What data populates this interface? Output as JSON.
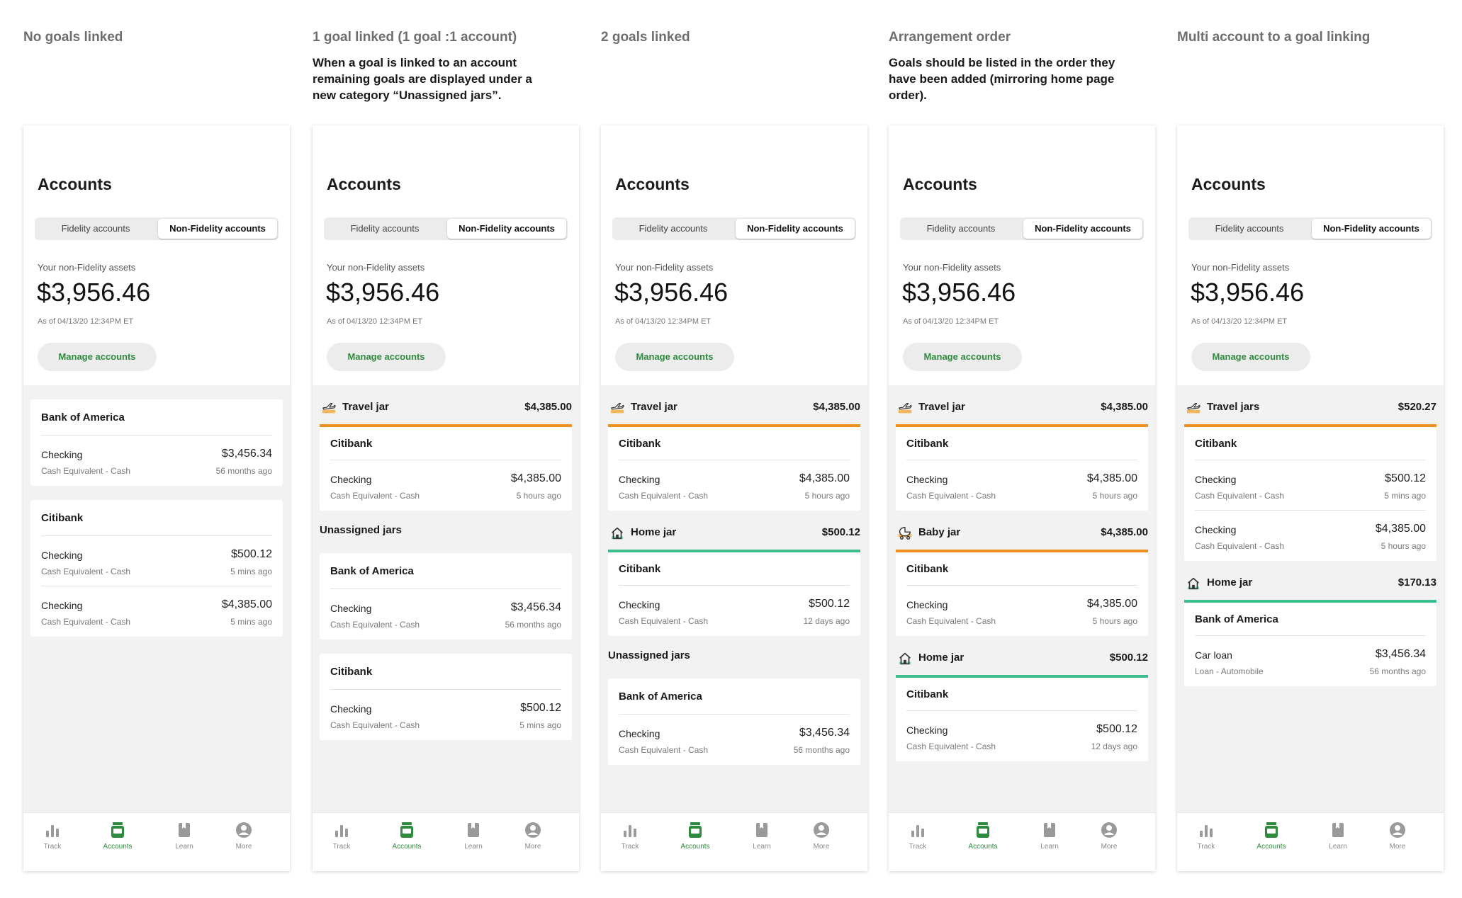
{
  "shared": {
    "accounts_title": "Accounts",
    "tabs": [
      "Fidelity accounts",
      "Non-Fidelity accounts"
    ],
    "assets_label": "Your non-Fidelity assets",
    "assets_value": "$3,956.46",
    "as_of": "As of 04/13/20 12:34PM ET",
    "manage_label": "Manage accounts",
    "unassigned_label": "Unassigned jars",
    "nav": [
      "Track",
      "Accounts",
      "Learn",
      "More"
    ],
    "accent_green": "#2e8b3e",
    "jar_orange": "#f0901e",
    "jar_teal": "#3cbf8c"
  },
  "columns": [
    {
      "title": "No goals linked",
      "description": "",
      "blocks": [
        {
          "type": "bank",
          "name": "Bank of America",
          "rows": [
            {
              "name": "Checking",
              "sub": "Cash Equivalent - Cash",
              "amount": "$3,456.34",
              "time": "56 months ago"
            }
          ]
        },
        {
          "type": "bank",
          "name": "Citibank",
          "rows": [
            {
              "name": "Checking",
              "sub": "Cash Equivalent - Cash",
              "amount": "$500.12",
              "time": "5 mins ago"
            },
            {
              "name": "Checking",
              "sub": "Cash Equivalent - Cash",
              "amount": "$4,385.00",
              "time": "5 mins ago"
            }
          ]
        }
      ]
    },
    {
      "title": "1 goal linked  (1 goal :1 account)",
      "description": "When a goal is linked to an account remaining goals are displayed under a new category “Unassigned jars”.",
      "blocks": [
        {
          "type": "jar",
          "icon": "travel",
          "name": "Travel jar",
          "amount": "$4,385.00"
        },
        {
          "type": "bank",
          "name": "Citibank",
          "rows": [
            {
              "name": "Checking",
              "sub": "Cash Equivalent - Cash",
              "amount": "$4,385.00",
              "time": "5 hours ago"
            }
          ]
        },
        {
          "type": "unassigned"
        },
        {
          "type": "bank",
          "name": "Bank of America",
          "rows": [
            {
              "name": "Checking",
              "sub": "Cash Equivalent - Cash",
              "amount": "$3,456.34",
              "time": "56 months ago"
            }
          ]
        },
        {
          "type": "bank",
          "name": "Citibank",
          "rows": [
            {
              "name": "Checking",
              "sub": "Cash Equivalent - Cash",
              "amount": "$500.12",
              "time": "5 mins ago"
            }
          ]
        }
      ]
    },
    {
      "title": "2 goals linked",
      "description": "",
      "blocks": [
        {
          "type": "jar",
          "icon": "travel",
          "name": "Travel jar",
          "amount": "$4,385.00"
        },
        {
          "type": "bank",
          "name": "Citibank",
          "rows": [
            {
              "name": "Checking",
              "sub": "Cash Equivalent - Cash",
              "amount": "$4,385.00",
              "time": "5 hours ago"
            }
          ]
        },
        {
          "type": "jar",
          "icon": "home",
          "name": "Home jar",
          "amount": "$500.12"
        },
        {
          "type": "bank",
          "name": "Citibank",
          "rows": [
            {
              "name": "Checking",
              "sub": "Cash Equivalent - Cash",
              "amount": "$500.12",
              "time": "12 days ago"
            }
          ]
        },
        {
          "type": "unassigned"
        },
        {
          "type": "bank",
          "name": "Bank of America",
          "rows": [
            {
              "name": "Checking",
              "sub": "Cash Equivalent - Cash",
              "amount": "$3,456.34",
              "time": "56 months ago"
            }
          ]
        }
      ]
    },
    {
      "title": "Arrangement order",
      "description": "Goals should be listed in the order they have been added (mirroring home page order).",
      "blocks": [
        {
          "type": "jar",
          "icon": "travel",
          "name": "Travel jar",
          "amount": "$4,385.00"
        },
        {
          "type": "bank",
          "name": "Citibank",
          "rows": [
            {
              "name": "Checking",
              "sub": "Cash Equivalent - Cash",
              "amount": "$4,385.00",
              "time": "5 hours ago"
            }
          ]
        },
        {
          "type": "jar",
          "icon": "baby",
          "name": "Baby jar",
          "amount": "$4,385.00"
        },
        {
          "type": "bank",
          "name": "Citibank",
          "rows": [
            {
              "name": "Checking",
              "sub": "Cash Equivalent - Cash",
              "amount": "$4,385.00",
              "time": "5 hours ago"
            }
          ]
        },
        {
          "type": "jar",
          "icon": "home",
          "name": "Home jar",
          "amount": "$500.12"
        },
        {
          "type": "bank",
          "name": "Citibank",
          "rows": [
            {
              "name": "Checking",
              "sub": "Cash Equivalent - Cash",
              "amount": "$500.12",
              "time": "12 days ago"
            }
          ]
        }
      ]
    },
    {
      "title": "Multi account to a goal linking",
      "description": "",
      "blocks": [
        {
          "type": "jar",
          "icon": "travel",
          "name": "Travel jars",
          "amount": "$520.27"
        },
        {
          "type": "bank",
          "name": "Citibank",
          "rows": [
            {
              "name": "Checking",
              "sub": "Cash Equivalent - Cash",
              "amount": "$500.12",
              "time": "5 mins ago"
            },
            {
              "name": "Checking",
              "sub": "Cash Equivalent - Cash",
              "amount": "$4,385.00",
              "time": "5 hours ago"
            }
          ]
        },
        {
          "type": "jar",
          "icon": "home",
          "name": "Home jar",
          "amount": "$170.13"
        },
        {
          "type": "bank",
          "name": "Bank of America",
          "rows": [
            {
              "name": "Car loan",
              "sub": "Loan - Automobile",
              "amount": "$3,456.34",
              "time": "56 months ago"
            }
          ]
        }
      ]
    }
  ]
}
